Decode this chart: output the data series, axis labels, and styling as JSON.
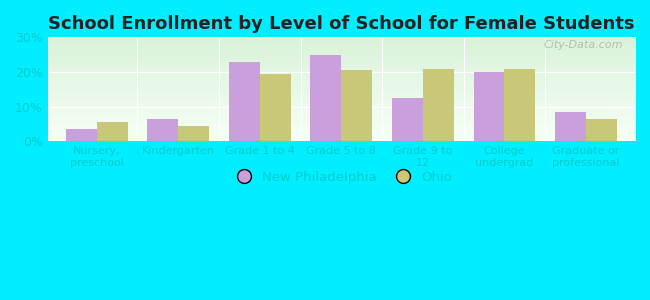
{
  "title": "School Enrollment by Level of School for Female Students",
  "categories": [
    "Nursery,\npreschool",
    "Kindergarten",
    "Grade 1 to 4",
    "Grade 5 to 8",
    "Grade 9 to\n12",
    "College\nundergrad",
    "Graduate or\nprofessional"
  ],
  "new_philadelphia": [
    3.5,
    6.5,
    23.0,
    25.0,
    12.5,
    20.0,
    8.5
  ],
  "ohio": [
    5.5,
    4.5,
    19.5,
    20.5,
    21.0,
    21.0,
    6.5
  ],
  "color_np": "#c9a0dc",
  "color_ohio": "#c8c878",
  "background_outer": "#00eeff",
  "background_plot_top": "#d8f0d8",
  "background_plot_bottom": "#f5fff5",
  "ylim": [
    0,
    30
  ],
  "yticks": [
    0,
    10,
    20,
    30
  ],
  "ytick_labels": [
    "0%",
    "10%",
    "20%",
    "30%"
  ],
  "legend_labels": [
    "New Philadelphia",
    "Ohio"
  ],
  "title_fontsize": 13,
  "bar_width": 0.38,
  "figsize": [
    6.5,
    3.0
  ],
  "dpi": 100,
  "tick_label_color": "#00cccc",
  "title_color": "#222222",
  "watermark": "City-Data.com"
}
